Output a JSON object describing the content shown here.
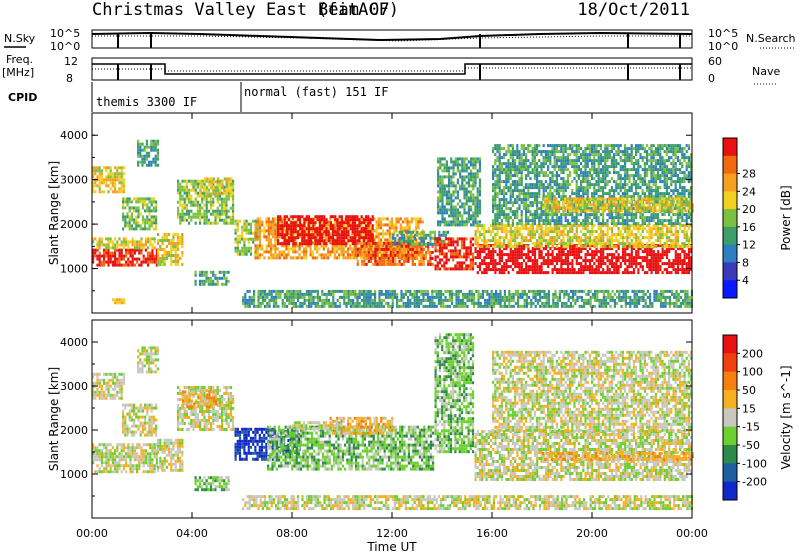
{
  "header": {
    "station": "Christmas Valley East (fitACF)",
    "beam": "Beam 07",
    "date": "18/Oct/2011"
  },
  "top_panels": {
    "nsky_label": "N.Sky",
    "nsky_ticks": [
      "10^5",
      "10^0"
    ],
    "nsearch_label": "N.Search",
    "nsearch_ticks": [
      "10^5",
      "10^0"
    ],
    "freq_label_1": "Freq.",
    "freq_label_2": "[MHz]",
    "freq_ticks": [
      "12",
      "8"
    ],
    "nave_label": "Nave",
    "nave_ticks": [
      "60",
      "0"
    ],
    "cpid_label": "CPID",
    "cpid_segments": [
      {
        "text": "themis 3300 IF",
        "start_hour": 0.0
      },
      {
        "text": "normal (fast) 151 IF",
        "start_hour": 6.0
      }
    ]
  },
  "chart_data": [
    {
      "type": "heatmap",
      "title": "",
      "xlabel": "Time UT",
      "ylabel": "Slant Range [km]",
      "x_ticks": [
        "00:00",
        "04:00",
        "08:00",
        "12:00",
        "16:00",
        "20:00",
        "00:00"
      ],
      "xlim_hours": [
        0,
        24
      ],
      "ylim_km": [
        0,
        4500
      ],
      "y_ticks": [
        1000,
        2000,
        3000,
        4000
      ],
      "colorbar": {
        "label": "Power [dB]",
        "ticks": [
          "4",
          "8",
          "12",
          "16",
          "20",
          "24",
          "28"
        ],
        "colors": [
          "#0a1aff",
          "#3a3ab8",
          "#2e7fc0",
          "#3d9e6a",
          "#7bc043",
          "#f0d020",
          "#f5a020",
          "#f06a10",
          "#e81010"
        ]
      },
      "regions": [
        {
          "t0": 0.0,
          "t1": 2.6,
          "r0": 1050,
          "r1": 1450,
          "level": 8
        },
        {
          "t0": 0.0,
          "t1": 2.5,
          "r0": 1450,
          "r1": 1700,
          "level": 5
        },
        {
          "t0": 0.0,
          "t1": 1.3,
          "r0": 2700,
          "r1": 3300,
          "level": 5
        },
        {
          "t0": 1.2,
          "t1": 2.6,
          "r0": 1900,
          "r1": 2600,
          "level": 4
        },
        {
          "t0": 1.8,
          "t1": 2.6,
          "r0": 3300,
          "r1": 3900,
          "level": 3
        },
        {
          "t0": 2.6,
          "t1": 3.6,
          "r0": 1100,
          "r1": 1800,
          "level": 5
        },
        {
          "t0": 3.4,
          "t1": 5.6,
          "r0": 2000,
          "r1": 3000,
          "level": 4
        },
        {
          "t0": 4.3,
          "t1": 5.6,
          "r0": 2700,
          "r1": 3050,
          "level": 5
        },
        {
          "t0": 4.1,
          "t1": 5.5,
          "r0": 650,
          "r1": 950,
          "level": 3
        },
        {
          "t0": 0.8,
          "t1": 1.3,
          "r0": 230,
          "r1": 330,
          "level": 5
        },
        {
          "t0": 5.7,
          "t1": 6.6,
          "r0": 1300,
          "r1": 2100,
          "level": 4
        },
        {
          "t0": 6.5,
          "t1": 13.2,
          "r0": 1250,
          "r1": 2150,
          "level": 6
        },
        {
          "t0": 7.4,
          "t1": 11.2,
          "r0": 1550,
          "r1": 2200,
          "level": 9
        },
        {
          "t0": 10.5,
          "t1": 13.6,
          "r0": 1100,
          "r1": 1600,
          "level": 7
        },
        {
          "t0": 12.0,
          "t1": 14.2,
          "r0": 1550,
          "r1": 1850,
          "level": 3
        },
        {
          "t0": 6.0,
          "t1": 24.0,
          "r0": 180,
          "r1": 520,
          "level": 3
        },
        {
          "t0": 13.7,
          "t1": 15.2,
          "r0": 1000,
          "r1": 1700,
          "level": 8
        },
        {
          "t0": 13.8,
          "t1": 15.5,
          "r0": 2000,
          "r1": 3500,
          "level": 3
        },
        {
          "t0": 15.3,
          "t1": 24.0,
          "r0": 900,
          "r1": 1550,
          "level": 9
        },
        {
          "t0": 15.3,
          "t1": 24.0,
          "r0": 1500,
          "r1": 2000,
          "level": 5
        },
        {
          "t0": 16.0,
          "t1": 24.0,
          "r0": 2000,
          "r1": 3800,
          "level": 3
        },
        {
          "t0": 18.0,
          "t1": 24.0,
          "r0": 2300,
          "r1": 2600,
          "level": 5
        }
      ]
    },
    {
      "type": "heatmap",
      "title": "",
      "xlabel": "Time UT",
      "ylabel": "Slant Range [km]",
      "x_ticks": [
        "00:00",
        "04:00",
        "08:00",
        "12:00",
        "16:00",
        "20:00",
        "00:00"
      ],
      "xlim_hours": [
        0,
        24
      ],
      "ylim_km": [
        0,
        4500
      ],
      "y_ticks": [
        1000,
        2000,
        3000,
        4000
      ],
      "colorbar": {
        "label": "Velocity [m s^-1]",
        "ticks": [
          "200",
          "100",
          "50",
          "15",
          "-15",
          "-50",
          "-100",
          "-200"
        ],
        "colors": [
          "#1028c8",
          "#1f5f9f",
          "#2e8a4a",
          "#6ed030",
          "#c8c8c0",
          "#f5b020",
          "#f58010",
          "#f04010",
          "#e81010"
        ]
      },
      "regions": [
        {
          "t0": 0.0,
          "t1": 2.6,
          "r0": 1050,
          "r1": 1700,
          "level": 4
        },
        {
          "t0": 0.0,
          "t1": 1.3,
          "r0": 2700,
          "r1": 3300,
          "level": 4
        },
        {
          "t0": 1.2,
          "t1": 2.6,
          "r0": 1900,
          "r1": 2600,
          "level": 4
        },
        {
          "t0": 1.8,
          "t1": 2.6,
          "r0": 3300,
          "r1": 3900,
          "level": 4
        },
        {
          "t0": 2.6,
          "t1": 3.6,
          "r0": 1100,
          "r1": 1800,
          "level": 4
        },
        {
          "t0": 3.4,
          "t1": 5.6,
          "r0": 2000,
          "r1": 3000,
          "level": 4
        },
        {
          "t0": 3.6,
          "t1": 5.0,
          "r0": 2500,
          "r1": 2900,
          "level": 5
        },
        {
          "t0": 4.1,
          "t1": 5.5,
          "r0": 650,
          "r1": 950,
          "level": 3
        },
        {
          "t0": 5.7,
          "t1": 7.2,
          "r0": 1350,
          "r1": 2050,
          "level": 0
        },
        {
          "t0": 7.2,
          "t1": 8.3,
          "r0": 1500,
          "r1": 2000,
          "level": 1
        },
        {
          "t0": 7.0,
          "t1": 13.6,
          "r0": 1100,
          "r1": 2100,
          "level": 3
        },
        {
          "t0": 9.5,
          "t1": 12.0,
          "r0": 1950,
          "r1": 2300,
          "level": 5
        },
        {
          "t0": 8.0,
          "t1": 10.0,
          "r0": 2000,
          "r1": 2200,
          "level": 4
        },
        {
          "t0": 6.0,
          "t1": 24.0,
          "r0": 180,
          "r1": 520,
          "level": 4
        },
        {
          "t0": 13.7,
          "t1": 15.2,
          "r0": 1500,
          "r1": 4200,
          "level": 3
        },
        {
          "t0": 15.3,
          "t1": 24.0,
          "r0": 900,
          "r1": 2000,
          "level": 4
        },
        {
          "t0": 16.0,
          "t1": 24.0,
          "r0": 2000,
          "r1": 3800,
          "level": 4
        },
        {
          "t0": 18.0,
          "t1": 24.0,
          "r0": 1300,
          "r1": 1500,
          "level": 5
        }
      ]
    }
  ]
}
